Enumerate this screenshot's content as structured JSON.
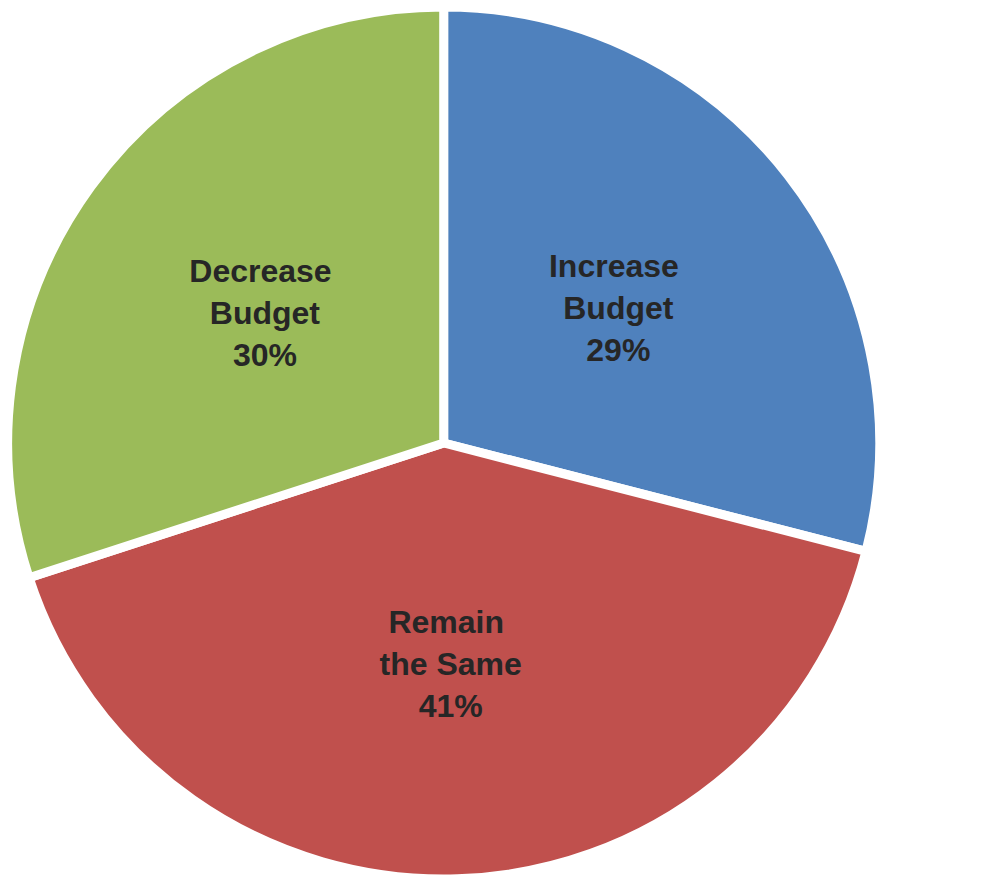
{
  "chart_data": {
    "type": "pie",
    "categories": [
      "Increase Budget",
      "Remain the Same",
      "Decrease Budget"
    ],
    "values": [
      29,
      41,
      30
    ],
    "value_labels": [
      "29%",
      "41%",
      "30%"
    ],
    "colors": [
      "#4f81bd",
      "#c0504d",
      "#9bbb59"
    ],
    "data_labels": true
  }
}
